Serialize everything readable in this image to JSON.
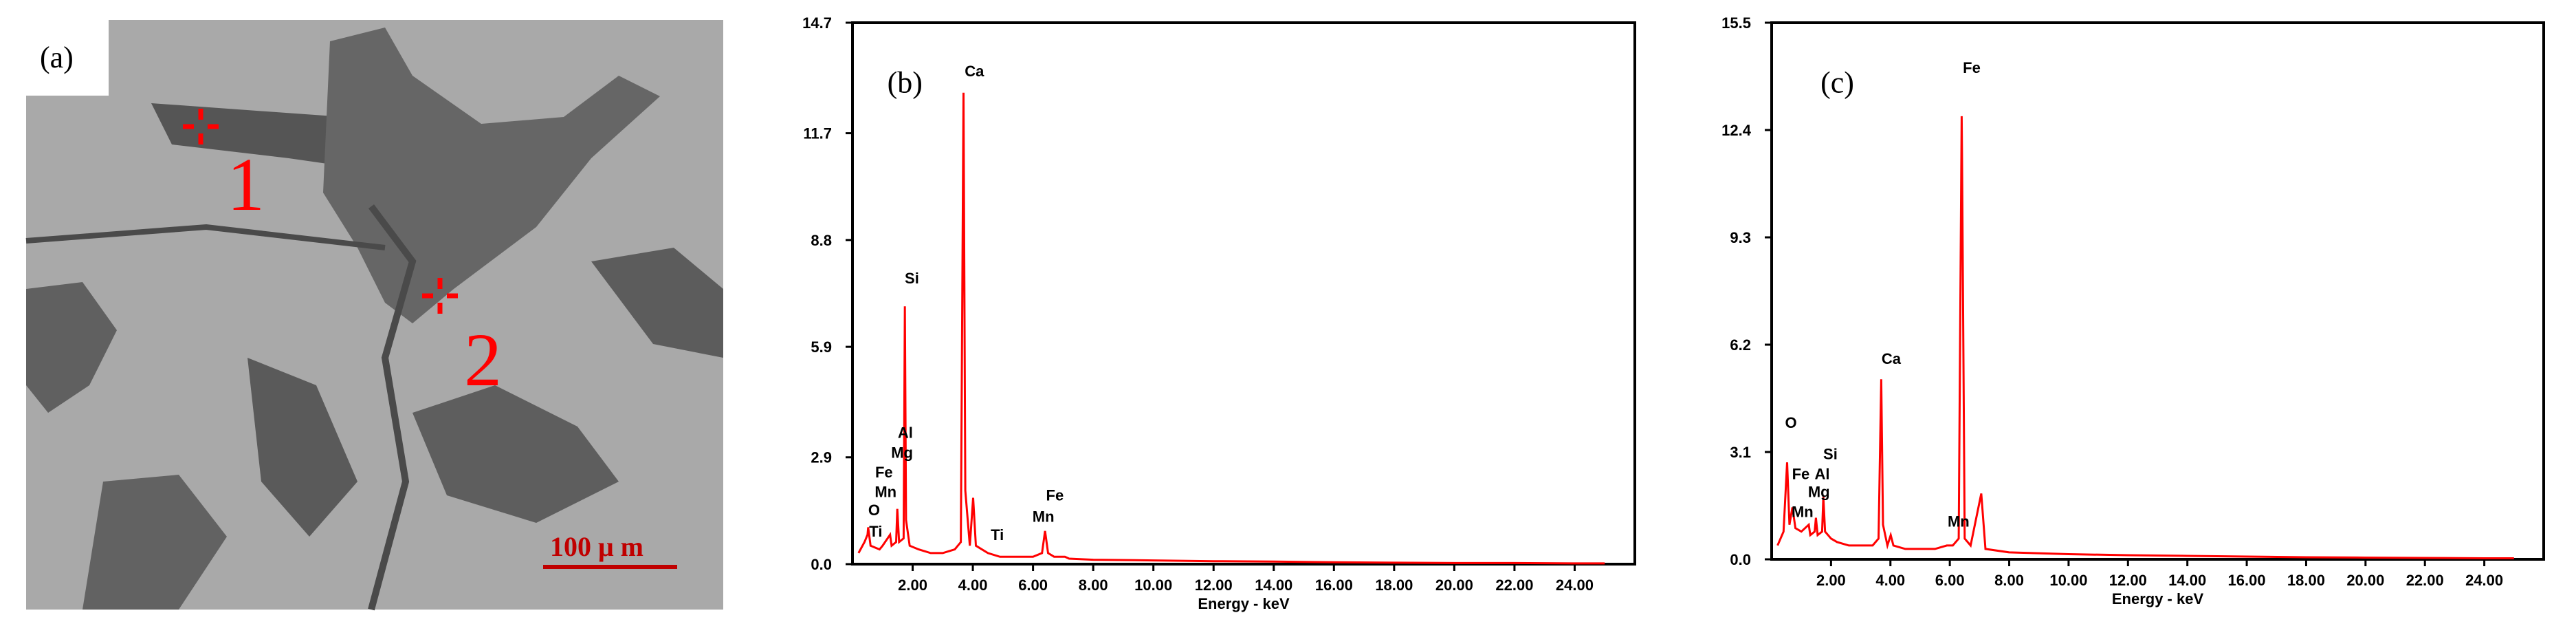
{
  "image_panel": {
    "label": "(a)",
    "markers": [
      "1",
      "2"
    ],
    "scale_bar": "100 μ m"
  },
  "chart_data": [
    {
      "type": "line",
      "panel_label": "(b)",
      "x_label": "Energy - keV",
      "color": "#ff0000",
      "grid": false,
      "xlim": [
        0,
        26
      ],
      "ylim": [
        0,
        14.7
      ],
      "xticks": [
        {
          "value": 2,
          "label": "2.00"
        },
        {
          "value": 4,
          "label": "4.00"
        },
        {
          "value": 6,
          "label": "6.00"
        },
        {
          "value": 8,
          "label": "8.00"
        },
        {
          "value": 10,
          "label": "10.00"
        },
        {
          "value": 12,
          "label": "12.00"
        },
        {
          "value": 14,
          "label": "14.00"
        },
        {
          "value": 16,
          "label": "16.00"
        },
        {
          "value": 18,
          "label": "18.00"
        },
        {
          "value": 20,
          "label": "20.00"
        },
        {
          "value": 22,
          "label": "22.00"
        },
        {
          "value": 24,
          "label": "24.00"
        }
      ],
      "yticks": [
        {
          "value": 0,
          "label": "0.0"
        },
        2.9,
        5.9,
        8.8,
        11.7,
        14.7
      ],
      "peak_labels": [
        "Ca",
        "Si",
        "Al",
        "Mg",
        "Fe",
        "Mn",
        "O",
        "Ti",
        "Ti",
        "Fe",
        "Mn"
      ],
      "x": [
        0.2,
        0.4,
        0.5,
        0.52,
        0.6,
        0.9,
        1.0,
        1.25,
        1.3,
        1.45,
        1.49,
        1.55,
        1.7,
        1.74,
        1.78,
        1.9,
        2.2,
        2.6,
        3.0,
        3.4,
        3.6,
        3.69,
        3.75,
        3.9,
        4.01,
        4.1,
        4.5,
        4.9,
        5.5,
        6.0,
        6.3,
        6.4,
        6.5,
        6.7,
        7.06,
        7.2,
        8,
        10,
        12,
        14,
        16,
        18,
        20,
        22,
        24,
        25
      ],
      "values": [
        0.3,
        0.6,
        0.8,
        1.0,
        0.5,
        0.4,
        0.5,
        0.8,
        0.5,
        0.6,
        1.5,
        0.6,
        0.7,
        7.0,
        1.2,
        0.5,
        0.4,
        0.3,
        0.3,
        0.4,
        0.6,
        12.8,
        2.0,
        0.5,
        1.8,
        0.5,
        0.3,
        0.2,
        0.2,
        0.2,
        0.3,
        0.9,
        0.3,
        0.2,
        0.2,
        0.15,
        0.12,
        0.1,
        0.08,
        0.07,
        0.05,
        0.04,
        0.03,
        0.03,
        0.02,
        0.02
      ]
    },
    {
      "type": "line",
      "panel_label": "(c)",
      "x_label": "Energy - keV",
      "color": "#ff0000",
      "grid": false,
      "xlim": [
        0,
        26
      ],
      "ylim": [
        0,
        15.5
      ],
      "xticks": [
        {
          "value": 2,
          "label": "2.00"
        },
        {
          "value": 4,
          "label": "4.00"
        },
        {
          "value": 6,
          "label": "6.00"
        },
        {
          "value": 8,
          "label": "8.00"
        },
        {
          "value": 10,
          "label": "10.00"
        },
        {
          "value": 12,
          "label": "12.00"
        },
        {
          "value": 14,
          "label": "14.00"
        },
        {
          "value": 16,
          "label": "16.00"
        },
        {
          "value": 18,
          "label": "18.00"
        },
        {
          "value": 20,
          "label": "20.00"
        },
        {
          "value": 22,
          "label": "22.00"
        },
        {
          "value": 24,
          "label": "24.00"
        }
      ],
      "yticks": [
        {
          "value": 0,
          "label": "0.0"
        },
        3.1,
        6.2,
        9.3,
        12.4,
        15.5
      ],
      "peak_labels": [
        "Fe",
        "Ca",
        "O",
        "Si",
        "Fe",
        "Al",
        "Mg",
        "Mn",
        "Mn"
      ],
      "x": [
        0.2,
        0.4,
        0.52,
        0.6,
        0.7,
        0.8,
        1.0,
        1.25,
        1.3,
        1.45,
        1.49,
        1.55,
        1.7,
        1.74,
        1.8,
        2.0,
        2.2,
        2.6,
        3.0,
        3.4,
        3.6,
        3.69,
        3.75,
        3.9,
        4.01,
        4.1,
        4.5,
        5.0,
        5.5,
        5.9,
        6.1,
        6.3,
        6.4,
        6.41,
        6.5,
        6.7,
        7.06,
        7.2,
        8,
        10,
        12,
        14,
        16,
        18,
        20,
        22,
        24,
        25
      ],
      "values": [
        0.4,
        0.8,
        2.8,
        1.0,
        1.5,
        0.9,
        0.8,
        1.0,
        0.7,
        0.8,
        1.2,
        0.7,
        0.8,
        1.8,
        0.8,
        0.6,
        0.5,
        0.4,
        0.4,
        0.4,
        0.6,
        5.2,
        1.0,
        0.4,
        0.7,
        0.4,
        0.3,
        0.3,
        0.3,
        0.4,
        0.4,
        0.6,
        12.8,
        11.7,
        0.6,
        0.4,
        1.9,
        0.3,
        0.2,
        0.15,
        0.12,
        0.1,
        0.08,
        0.06,
        0.05,
        0.04,
        0.03,
        0.03
      ]
    }
  ]
}
